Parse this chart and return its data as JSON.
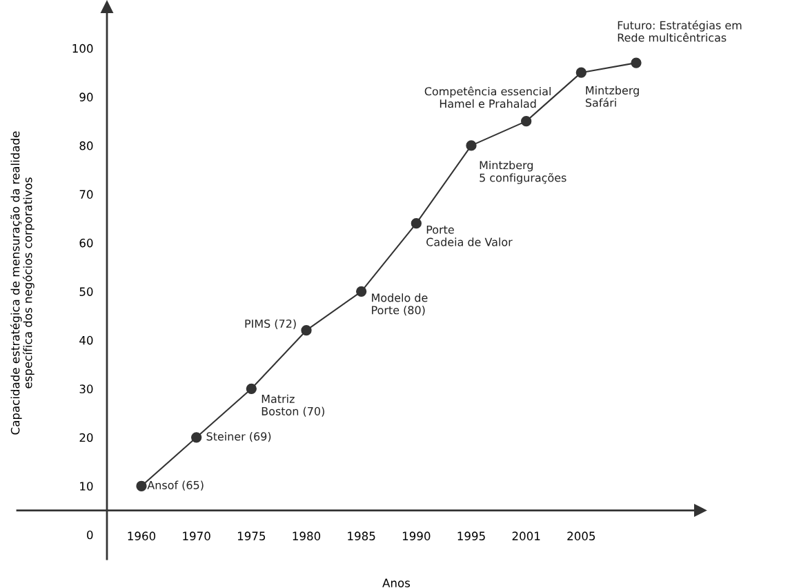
{
  "chart_data": {
    "type": "line",
    "xlabel": "Anos",
    "ylabel": "Capacidade estratégica de mensuração da realidade\nespecífica dos negócios corporativos",
    "categories": [
      "1960",
      "1970",
      "1975",
      "1980",
      "1985",
      "1990",
      "1995",
      "2001",
      "2005",
      null
    ],
    "series": [
      {
        "color": "#333333",
        "values": [
          10,
          20,
          30,
          42,
          50,
          64,
          80,
          85,
          95,
          97
        ]
      }
    ],
    "ylim": [
      -5,
      108.5
    ],
    "yticks": [
      0,
      10,
      20,
      30,
      40,
      50,
      60,
      70,
      80,
      90,
      100
    ],
    "annotations": [
      {
        "text": "Ansof (65)",
        "x": "1960",
        "y": 10
      },
      {
        "text": "Steiner (69)",
        "x": "1970",
        "y": 20
      },
      {
        "text": "Matriz\nBoston (70)",
        "x": "1975",
        "y": 30
      },
      {
        "text": "PIMS (72)",
        "x": "1980",
        "y": 42
      },
      {
        "text": "Modelo de\nPorte (80)",
        "x": "1985",
        "y": 50
      },
      {
        "text": "Porte\nCadeia de Valor",
        "x": "1990",
        "y": 64
      },
      {
        "text": "Mintzberg\n5 configurações",
        "x": "1995",
        "y": 80
      },
      {
        "text": "Competência essencial\nHamel e Prahalad",
        "x": "2001",
        "y": 85
      },
      {
        "text": "Mintzberg\nSafári",
        "x": "2005",
        "y": 95
      },
      "Futuro: Estratégias em\nRede multicêntricas"
    ],
    "grid": false,
    "marker": "circle",
    "line_style": "solid"
  }
}
